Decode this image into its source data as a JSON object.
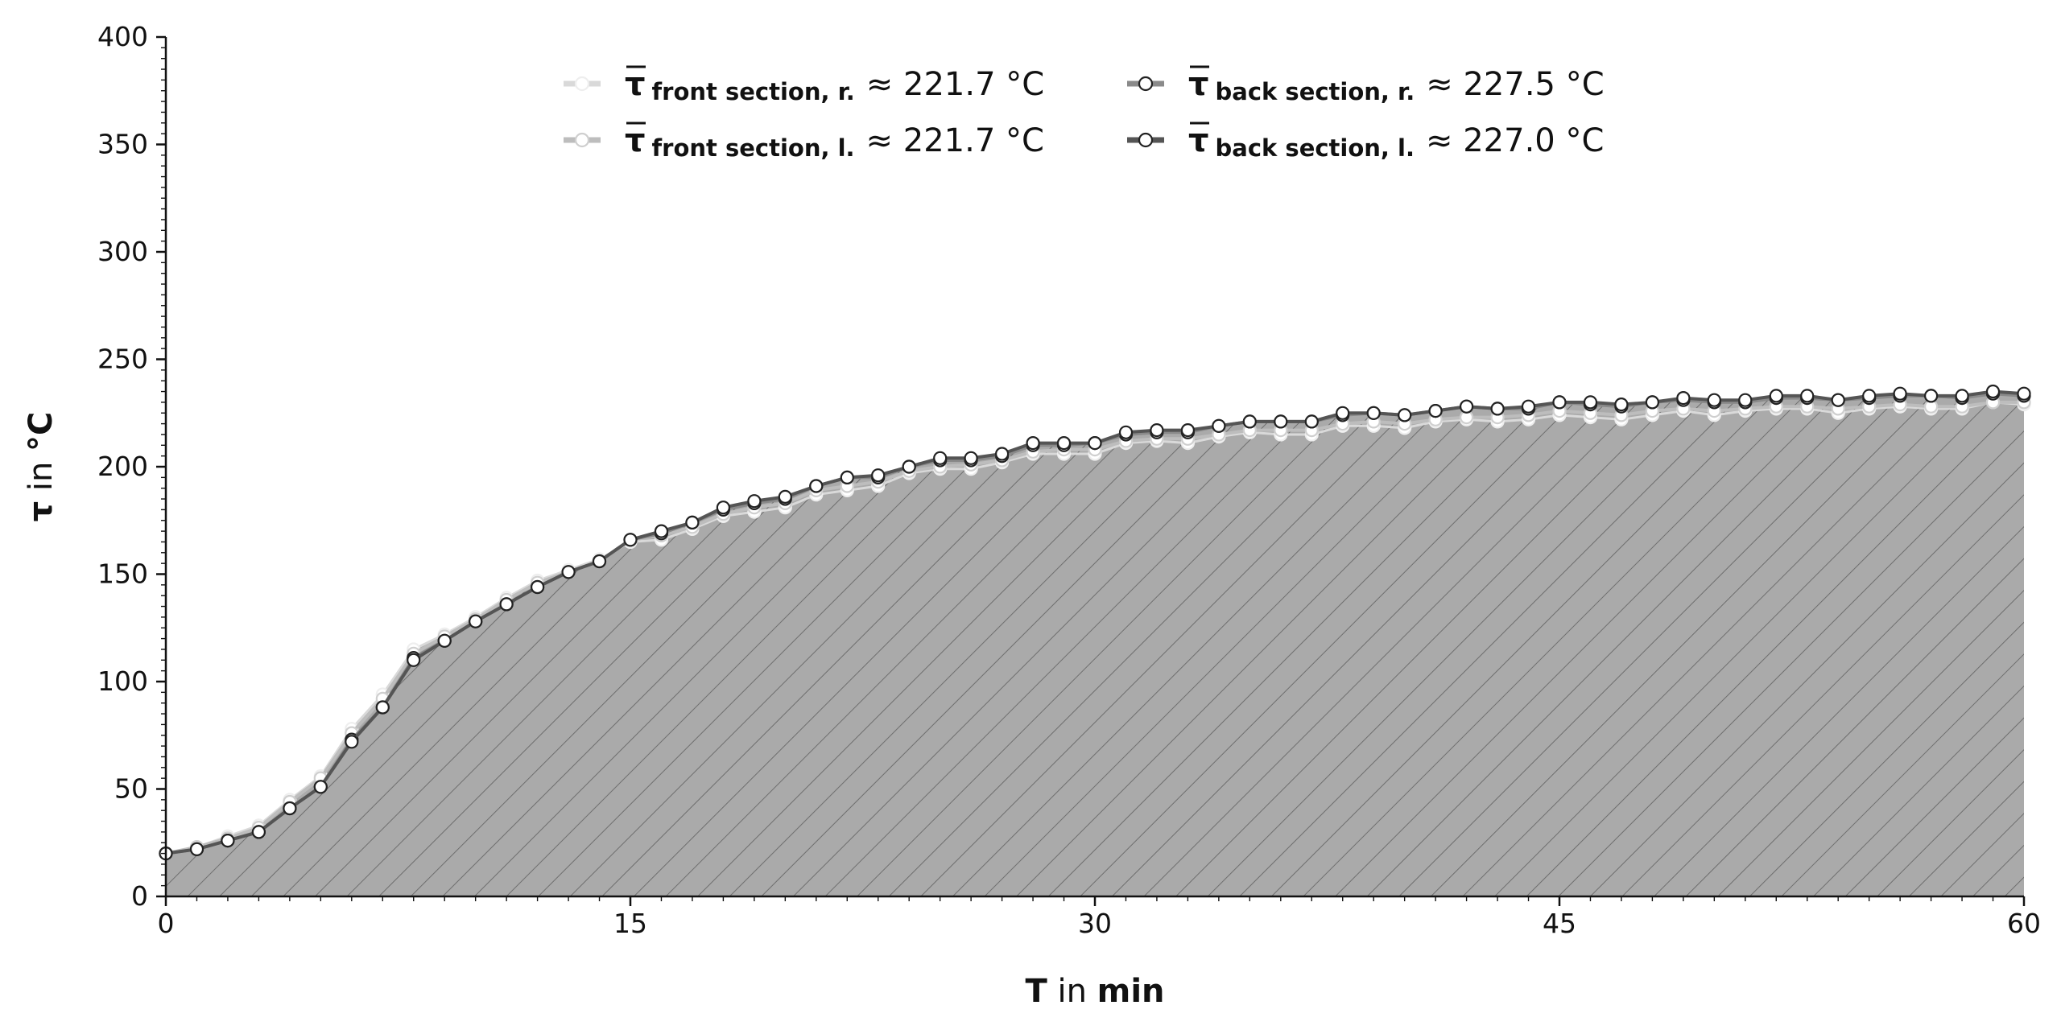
{
  "chart_data": {
    "type": "line",
    "xlabel": {
      "var": "T",
      "mid": " in ",
      "unit": "min"
    },
    "ylabel": {
      "var": "τ",
      "mid": " in ",
      "unit": "°C"
    },
    "xlim": [
      0,
      60
    ],
    "ylim": [
      0,
      400
    ],
    "xticks": [
      "0",
      "15",
      "30",
      "45",
      "60"
    ],
    "yticks": [
      "0",
      "50",
      "100",
      "150",
      "200",
      "250",
      "300",
      "350",
      "400"
    ],
    "grid": false,
    "legend_position": "top-center",
    "fill_color": "#aaaaaa",
    "x": [
      0,
      1,
      2,
      3,
      4,
      5,
      6,
      7,
      8,
      9,
      10,
      11,
      12,
      13,
      14,
      15,
      16,
      17,
      18,
      19,
      20,
      21,
      22,
      23,
      24,
      25,
      26,
      27,
      28,
      29,
      30,
      31,
      32,
      33,
      34,
      35,
      36,
      37,
      38,
      39,
      40,
      41,
      42,
      43,
      44,
      45,
      46,
      47,
      48,
      49,
      50,
      51,
      52,
      53,
      54,
      55,
      56,
      57,
      58,
      59,
      60
    ],
    "series": [
      {
        "symbol": "τ",
        "subscript": "front section,  r.",
        "value_text": "≈ 221.7 °C",
        "color": "#d9d9d9",
        "values": [
          20,
          23,
          28,
          33,
          45,
          56,
          78,
          94,
          115,
          122,
          130,
          139,
          147,
          152,
          157,
          165,
          166,
          171,
          177,
          179,
          181,
          187,
          189,
          191,
          197,
          199,
          199,
          202,
          206,
          206,
          206,
          211,
          212,
          211,
          214,
          216,
          215,
          215,
          219,
          219,
          218,
          221,
          222,
          221,
          222,
          224,
          223,
          222,
          224,
          226,
          224,
          226,
          227,
          227,
          225,
          227,
          228,
          227,
          227,
          230,
          229
        ]
      },
      {
        "symbol": "τ",
        "subscript": "front section,  l.",
        "value_text": "≈ 221.7 °C",
        "color": "#bdbdbd",
        "values": [
          20,
          23,
          27,
          32,
          44,
          55,
          76,
          92,
          113,
          121,
          129,
          138,
          146,
          151,
          156,
          166,
          168,
          172,
          178,
          181,
          183,
          189,
          191,
          193,
          198,
          200,
          201,
          203,
          207,
          208,
          208,
          212,
          213,
          213,
          215,
          217,
          217,
          217,
          220,
          221,
          220,
          222,
          223,
          223,
          224,
          226,
          225,
          224,
          226,
          227,
          226,
          227,
          228,
          228,
          227,
          228,
          229,
          228,
          228,
          230,
          230
        ]
      },
      {
        "symbol": "τ",
        "subscript": "back section,  r.",
        "value_text": "≈ 227.5 °C",
        "color": "#8a8a8a",
        "values": [
          20,
          22,
          26,
          30,
          41,
          51,
          73,
          88,
          111,
          119,
          128,
          136,
          144,
          151,
          156,
          166,
          169,
          174,
          180,
          183,
          185,
          191,
          195,
          195,
          200,
          203,
          203,
          205,
          210,
          210,
          211,
          215,
          216,
          216,
          219,
          221,
          221,
          221,
          224,
          225,
          224,
          226,
          228,
          227,
          227,
          230,
          229,
          228,
          230,
          231,
          230,
          230,
          232,
          232,
          231,
          232,
          233,
          233,
          232,
          234,
          233
        ]
      },
      {
        "symbol": "τ",
        "subscript": "back section,  l.",
        "value_text": "≈ 227.0 °C",
        "color": "#555555",
        "values": [
          20,
          22,
          26,
          30,
          41,
          51,
          72,
          88,
          110,
          119,
          128,
          136,
          144,
          151,
          156,
          166,
          170,
          174,
          181,
          184,
          186,
          191,
          195,
          196,
          200,
          204,
          204,
          206,
          211,
          211,
          211,
          216,
          217,
          217,
          219,
          221,
          221,
          221,
          225,
          225,
          224,
          226,
          228,
          227,
          228,
          230,
          230,
          229,
          230,
          232,
          231,
          231,
          233,
          233,
          231,
          233,
          234,
          233,
          233,
          235,
          234
        ]
      }
    ]
  }
}
